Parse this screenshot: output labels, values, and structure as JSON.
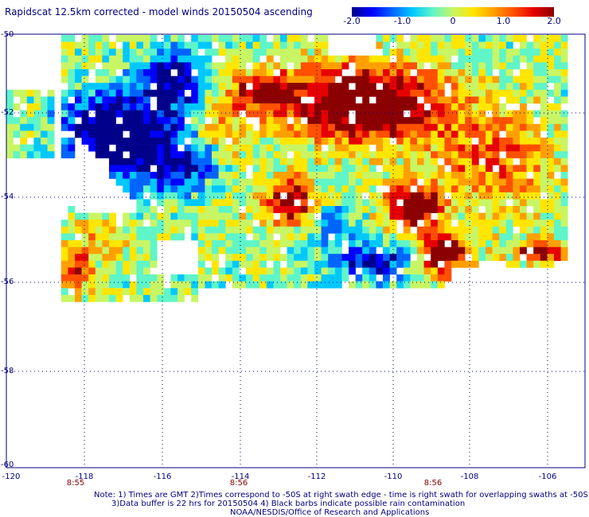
{
  "title": "Rapidscat 12.5km corrected - model winds 20150504 ascending",
  "colorbar": {
    "ticks": [
      "-2.0",
      "-1.0",
      "0",
      "1.0",
      "2.0"
    ],
    "min": -2.0,
    "max": 2.0,
    "palette": [
      "#00008b",
      "#0000ff",
      "#0064ff",
      "#00c8ff",
      "#5ff5c8",
      "#c8f564",
      "#ffe600",
      "#ffa000",
      "#ff5000",
      "#e60000",
      "#8b0000"
    ]
  },
  "map": {
    "lon_range": [
      -120,
      -105
    ],
    "lat_range": [
      -60,
      -50
    ],
    "lon_ticks": [
      "-120",
      "-118",
      "-116",
      "-114",
      "-112",
      "-110",
      "-108",
      "-106"
    ],
    "lat_ticks": [
      "-50",
      "-52",
      "-54",
      "-56",
      "-58",
      "-60"
    ],
    "time_labels": [
      {
        "text": "8:55",
        "lon": -118.3
      },
      {
        "text": "8:56",
        "lon": -114.0
      },
      {
        "text": "8:56",
        "lon": -109.0
      }
    ],
    "field": "wind speed difference (corrected - model)"
  },
  "notes": [
    "Note: 1) Times are GMT 2)Times correspond to -50S at right swath edge - time is right swath for overlapping swaths at -50S",
    "3)Data buffer is 22 hrs for 20150504 4) Black barbs indicate possible rain contamination",
    "NOAA/NESDIS/Office of Research and Applications"
  ]
}
